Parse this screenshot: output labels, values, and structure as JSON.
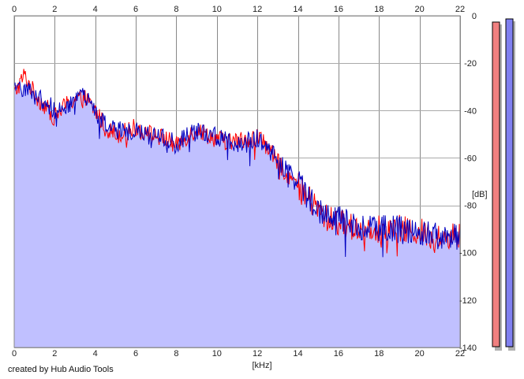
{
  "chart_data": {
    "type": "area",
    "xlabel": "[kHz]",
    "ylabel": "[dB]",
    "xlim": [
      0,
      22
    ],
    "ylim": [
      -140,
      0
    ],
    "x_ticks": [
      0,
      2,
      4,
      6,
      8,
      10,
      12,
      14,
      16,
      18,
      20,
      22
    ],
    "y_ticks": [
      0,
      -20,
      -40,
      -60,
      -80,
      -100,
      -120,
      -140
    ],
    "y_tick_labels": [
      "0",
      "-20",
      "-40",
      "-60",
      "-80",
      "-100",
      "-120",
      "-140"
    ],
    "grid": true,
    "series": [
      {
        "color": "#ff0000",
        "x": [
          0,
          0.5,
          1,
          1.5,
          2,
          2.5,
          3,
          3.5,
          4,
          4.5,
          5,
          5.5,
          6,
          6.5,
          7,
          7.5,
          8,
          8.5,
          9,
          9.5,
          10,
          10.5,
          11,
          11.5,
          12,
          12.5,
          13,
          13.5,
          14,
          14.5,
          15,
          15.5,
          16,
          16.5,
          17,
          17.5,
          18,
          18.5,
          19,
          19.5,
          20,
          20.5,
          21,
          21.5,
          22
        ],
        "values": [
          -33,
          -25,
          -33,
          -38,
          -43,
          -38,
          -35,
          -35,
          -40,
          -47,
          -50,
          -49,
          -47,
          -49,
          -51,
          -52,
          -55,
          -51,
          -48,
          -50,
          -52,
          -53,
          -53,
          -52,
          -51,
          -55,
          -62,
          -67,
          -72,
          -77,
          -82,
          -86,
          -87,
          -89,
          -90,
          -89,
          -90,
          -91,
          -90,
          -91,
          -91,
          -93,
          -94,
          -93,
          -93
        ]
      },
      {
        "color": "#0000c0",
        "x": [
          0,
          0.5,
          1,
          1.5,
          2,
          2.5,
          3,
          3.5,
          4,
          4.5,
          5,
          5.5,
          6,
          6.5,
          7,
          7.5,
          8,
          8.5,
          9,
          9.5,
          10,
          10.5,
          11,
          11.5,
          12,
          12.5,
          13,
          13.5,
          14,
          14.5,
          15,
          15.5,
          16,
          16.5,
          17,
          17.5,
          18,
          18.5,
          19,
          19.5,
          20,
          20.5,
          21,
          21.5,
          22
        ],
        "values": [
          -32,
          -30,
          -32,
          -36,
          -40,
          -38,
          -36,
          -34,
          -41,
          -46,
          -48,
          -49,
          -48,
          -50,
          -51,
          -52,
          -54,
          -51,
          -49,
          -50,
          -51,
          -52,
          -54,
          -52,
          -52,
          -56,
          -61,
          -66,
          -70,
          -76,
          -81,
          -85,
          -86,
          -88,
          -89,
          -89,
          -90,
          -90,
          -90,
          -91,
          -92,
          -92,
          -93,
          -93,
          -93
        ]
      }
    ],
    "area_fill": "#c0c0ff"
  },
  "credit": "created by Hub Audio Tools",
  "level_meters": [
    {
      "color": "#f08080"
    },
    {
      "color": "#8080f0"
    }
  ]
}
